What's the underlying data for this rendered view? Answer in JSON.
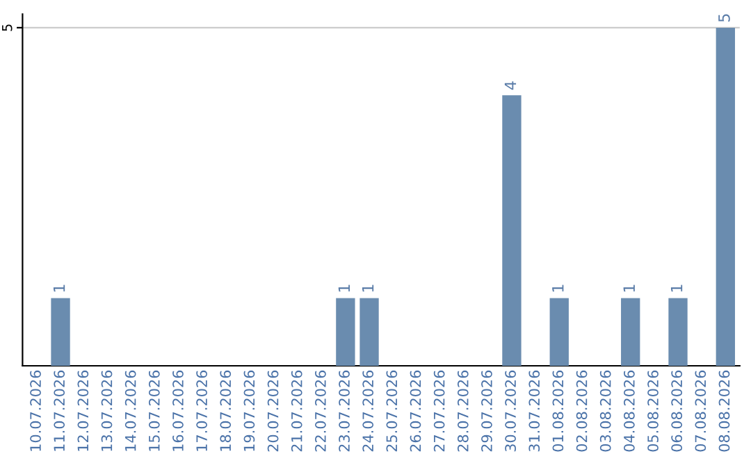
{
  "chart_data": {
    "type": "bar",
    "categories": [
      "10.07.2026",
      "11.07.2026",
      "12.07.2026",
      "13.07.2026",
      "14.07.2026",
      "15.07.2026",
      "16.07.2026",
      "17.07.2026",
      "18.07.2026",
      "19.07.2026",
      "20.07.2026",
      "21.07.2026",
      "22.07.2026",
      "23.07.2026",
      "24.07.2026",
      "25.07.2026",
      "26.07.2026",
      "27.07.2026",
      "28.07.2026",
      "29.07.2026",
      "30.07.2026",
      "31.07.2026",
      "01.08.2026",
      "02.08.2026",
      "03.08.2026",
      "04.08.2026",
      "05.08.2026",
      "06.08.2026",
      "07.08.2026",
      "08.08.2026"
    ],
    "values": [
      null,
      1,
      null,
      null,
      null,
      null,
      null,
      null,
      null,
      null,
      null,
      null,
      null,
      1,
      1,
      null,
      null,
      null,
      null,
      null,
      4,
      null,
      1,
      null,
      null,
      1,
      null,
      1,
      null,
      5
    ],
    "color": "#6a8caf",
    "ylim": [
      0,
      5.2
    ],
    "yticks": [
      5
    ],
    "grid": "y",
    "data_labels": true
  }
}
